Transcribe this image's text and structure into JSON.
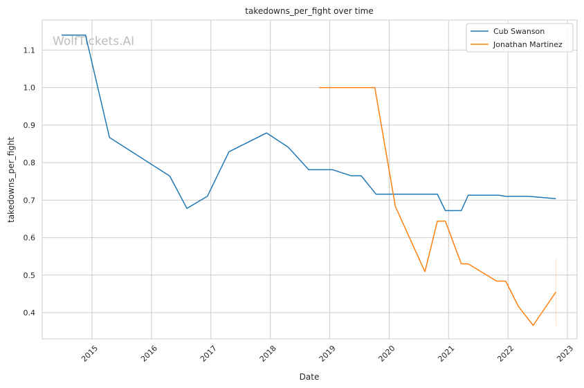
{
  "chart_data": {
    "type": "line",
    "title": "takedowns_per_fight over time",
    "xlabel": "Date",
    "ylabel": "takedowns_per_fight",
    "watermark": "WolfTickets.AI",
    "x_ticks": [
      "2015",
      "2016",
      "2017",
      "2018",
      "2019",
      "2020",
      "2021",
      "2022",
      "2023"
    ],
    "y_ticks": [
      "0.4",
      "0.5",
      "0.6",
      "0.7",
      "0.8",
      "0.9",
      "1.0",
      "1.1"
    ],
    "xlim": [
      "2014-03-01",
      "2023-03-01"
    ],
    "ylim": [
      0.33,
      1.18
    ],
    "grid": true,
    "legend_position": "top-right",
    "series": [
      {
        "name": "Cub Swanson",
        "color": "#1f77b4",
        "points": [
          [
            "2014-06-28",
            1.14
          ],
          [
            "2014-11-22",
            1.14
          ],
          [
            "2015-04-18",
            0.867
          ],
          [
            "2016-04-23",
            0.764
          ],
          [
            "2016-08-06",
            0.678
          ],
          [
            "2016-12-10",
            0.71
          ],
          [
            "2017-04-22",
            0.829
          ],
          [
            "2017-12-09",
            0.879
          ],
          [
            "2018-04-21",
            0.841
          ],
          [
            "2018-08-25",
            0.781
          ],
          [
            "2019-01-19",
            0.781
          ],
          [
            "2019-05-11",
            0.765
          ],
          [
            "2019-07-13",
            0.765
          ],
          [
            "2019-10-12",
            0.716
          ],
          [
            "2020-10-24",
            0.716
          ],
          [
            "2020-12-12",
            0.672
          ],
          [
            "2021-03-20",
            0.672
          ],
          [
            "2021-05-01",
            0.713
          ],
          [
            "2021-11-06",
            0.713
          ],
          [
            "2021-12-18",
            0.71
          ],
          [
            "2022-05-07",
            0.71
          ],
          [
            "2022-10-22",
            0.704
          ]
        ]
      },
      {
        "name": "Jonathan Martinez",
        "color": "#ff7f0e",
        "points": [
          [
            "2018-10-27",
            1.0
          ],
          [
            "2019-10-05",
            1.0
          ],
          [
            "2020-02-08",
            0.683
          ],
          [
            "2020-08-08",
            0.509
          ],
          [
            "2020-10-24",
            0.644
          ],
          [
            "2020-12-12",
            0.644
          ],
          [
            "2021-03-20",
            0.53
          ],
          [
            "2021-05-01",
            0.53
          ],
          [
            "2021-10-23",
            0.484
          ],
          [
            "2021-12-18",
            0.484
          ],
          [
            "2022-03-05",
            0.417
          ],
          [
            "2022-06-04",
            0.366
          ],
          [
            "2022-10-22",
            0.455
          ]
        ],
        "band": {
          "x": "2022-10-22",
          "low": 0.366,
          "high": 0.544
        }
      }
    ]
  }
}
